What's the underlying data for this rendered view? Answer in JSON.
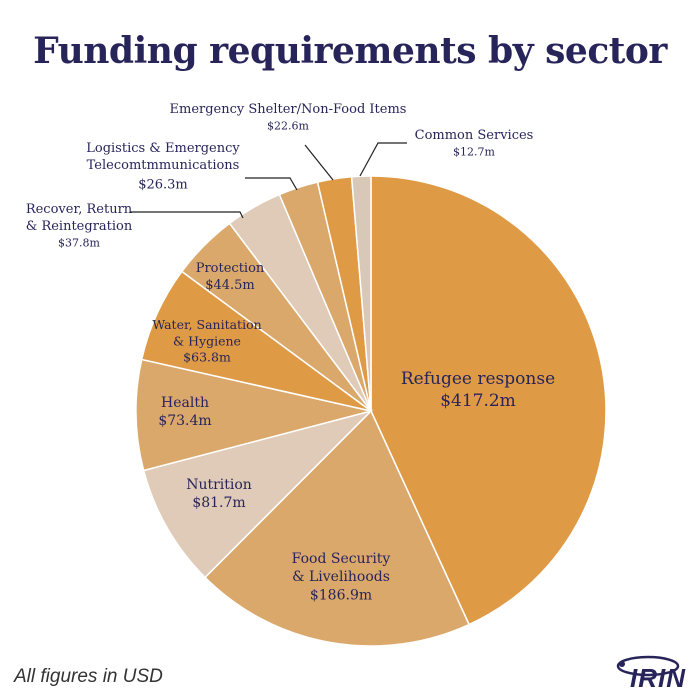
{
  "title": "Funding requirements by sector",
  "footnote": "All figures in USD",
  "logo_text": "IRIN",
  "colors": {
    "title": "#27245a",
    "label": "#27245a",
    "dark_orange": "#df9a45",
    "mid_orange": "#dba86c",
    "light_beige": "#dfcbb7",
    "pale": "#d8c8b8",
    "leader": "#222222"
  },
  "chart_data": {
    "type": "pie",
    "title": "Funding requirements by sector",
    "unit": "USD millions",
    "slices": [
      {
        "label": "Refugee response",
        "value_label": "$417.2m",
        "value": 417.2,
        "color": "#df9a45"
      },
      {
        "label": "Food Security & Livelihoods",
        "value_label": "$186.9m",
        "value": 186.9,
        "color": "#dba86c"
      },
      {
        "label": "Nutrition",
        "value_label": "$81.7m",
        "value": 81.7,
        "color": "#dfcbb7"
      },
      {
        "label": "Health",
        "value_label": "$73.4m",
        "value": 73.4,
        "color": "#dba86c"
      },
      {
        "label": "Water, Sanitation & Hygiene",
        "value_label": "$63.8m",
        "value": 63.8,
        "color": "#df9a45"
      },
      {
        "label": "Protection",
        "value_label": "$44.5m",
        "value": 44.5,
        "color": "#dba86c"
      },
      {
        "label": "Recover, Return & Reintegration",
        "value_label": "$37.8m",
        "value": 37.8,
        "color": "#dfcbb7"
      },
      {
        "label": "Logistics & Emergency Telecomtmmunications",
        "value_label": "$26.3m",
        "value": 26.3,
        "color": "#dba86c"
      },
      {
        "label": "Emergency Shelter/Non-Food Items",
        "value_label": "$22.6m",
        "value": 22.6,
        "color": "#df9a45"
      },
      {
        "label": "Common Services",
        "value_label": "$12.7m",
        "value": 12.7,
        "color": "#d8c8b8"
      }
    ]
  }
}
